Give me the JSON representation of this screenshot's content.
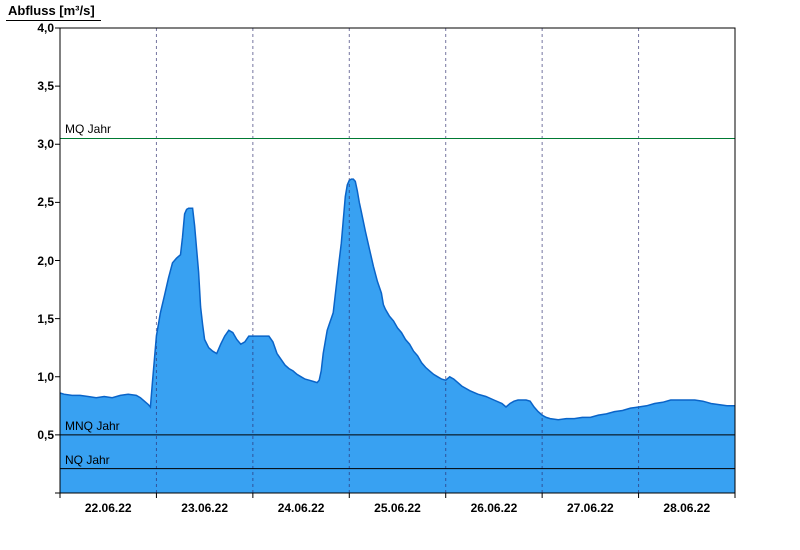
{
  "title": "Abfluss [m³/s]",
  "chart_data": {
    "type": "area",
    "title": "Abfluss [m³/s]",
    "xlabel": "",
    "ylabel": "Abfluss [m³/s]",
    "ylim": [
      0,
      4
    ],
    "ytick_step": 0.5,
    "ytick_labels": [
      "4,0",
      "3,5",
      "3,0",
      "2,5",
      "2,0",
      "1,5",
      "1,0",
      "0,5"
    ],
    "xtick_labels": [
      "22.06.22",
      "23.06.22",
      "24.06.22",
      "25.06.22",
      "26.06.22",
      "27.06.22",
      "28.06.22"
    ],
    "x_range_hours": 168,
    "x_start": "22.06.22 00:00",
    "x_end": "29.06.22 00:00",
    "grid": {
      "vertical_daily": true,
      "horizontal": false
    },
    "legend_position": "none",
    "series": [
      {
        "name": "Abfluss",
        "unit": "m³/s",
        "points": [
          [
            0,
            0.86
          ],
          [
            1,
            0.85
          ],
          [
            3,
            0.84
          ],
          [
            5,
            0.84
          ],
          [
            7,
            0.83
          ],
          [
            9,
            0.82
          ],
          [
            11,
            0.83
          ],
          [
            13,
            0.82
          ],
          [
            15,
            0.84
          ],
          [
            17,
            0.85
          ],
          [
            19,
            0.84
          ],
          [
            20,
            0.82
          ],
          [
            21,
            0.79
          ],
          [
            22,
            0.76
          ],
          [
            22.5,
            0.74
          ],
          [
            23,
            0.95
          ],
          [
            24,
            1.35
          ],
          [
            25,
            1.55
          ],
          [
            26,
            1.7
          ],
          [
            27,
            1.85
          ],
          [
            28,
            1.98
          ],
          [
            29,
            2.02
          ],
          [
            30,
            2.05
          ],
          [
            30.5,
            2.2
          ],
          [
            31,
            2.4
          ],
          [
            31.5,
            2.44
          ],
          [
            32,
            2.45
          ],
          [
            33,
            2.45
          ],
          [
            33.5,
            2.3
          ],
          [
            34,
            2.1
          ],
          [
            34.5,
            1.9
          ],
          [
            35,
            1.6
          ],
          [
            35.5,
            1.45
          ],
          [
            36,
            1.32
          ],
          [
            37,
            1.25
          ],
          [
            38,
            1.22
          ],
          [
            39,
            1.2
          ],
          [
            40,
            1.28
          ],
          [
            41,
            1.35
          ],
          [
            42,
            1.4
          ],
          [
            43,
            1.38
          ],
          [
            44,
            1.32
          ],
          [
            45,
            1.28
          ],
          [
            46,
            1.3
          ],
          [
            47,
            1.35
          ],
          [
            48,
            1.35
          ],
          [
            50,
            1.35
          ],
          [
            52,
            1.35
          ],
          [
            53,
            1.3
          ],
          [
            54,
            1.2
          ],
          [
            55,
            1.15
          ],
          [
            56,
            1.1
          ],
          [
            57,
            1.07
          ],
          [
            58,
            1.05
          ],
          [
            59,
            1.02
          ],
          [
            60,
            1.0
          ],
          [
            61,
            0.98
          ],
          [
            62,
            0.97
          ],
          [
            63,
            0.96
          ],
          [
            64,
            0.95
          ],
          [
            64.5,
            0.97
          ],
          [
            65,
            1.05
          ],
          [
            65.5,
            1.2
          ],
          [
            66,
            1.3
          ],
          [
            66.5,
            1.4
          ],
          [
            67,
            1.45
          ],
          [
            67.5,
            1.5
          ],
          [
            68,
            1.55
          ],
          [
            68.5,
            1.7
          ],
          [
            69,
            1.85
          ],
          [
            69.5,
            2.0
          ],
          [
            70,
            2.15
          ],
          [
            70.5,
            2.35
          ],
          [
            71,
            2.55
          ],
          [
            71.5,
            2.65
          ],
          [
            72,
            2.69
          ],
          [
            72.5,
            2.7
          ],
          [
            73,
            2.7
          ],
          [
            73.5,
            2.68
          ],
          [
            74,
            2.6
          ],
          [
            74.5,
            2.5
          ],
          [
            75,
            2.42
          ],
          [
            76,
            2.25
          ],
          [
            77,
            2.1
          ],
          [
            78,
            1.95
          ],
          [
            79,
            1.82
          ],
          [
            80,
            1.72
          ],
          [
            80.5,
            1.62
          ],
          [
            81,
            1.58
          ],
          [
            82,
            1.52
          ],
          [
            83,
            1.48
          ],
          [
            84,
            1.42
          ],
          [
            85,
            1.38
          ],
          [
            86,
            1.32
          ],
          [
            87,
            1.28
          ],
          [
            88,
            1.22
          ],
          [
            89,
            1.18
          ],
          [
            90,
            1.12
          ],
          [
            91,
            1.08
          ],
          [
            92,
            1.05
          ],
          [
            93,
            1.02
          ],
          [
            94,
            1.0
          ],
          [
            95,
            0.98
          ],
          [
            96,
            0.97
          ],
          [
            97,
            1.0
          ],
          [
            98,
            0.98
          ],
          [
            99,
            0.95
          ],
          [
            100,
            0.92
          ],
          [
            101,
            0.9
          ],
          [
            102,
            0.88
          ],
          [
            104,
            0.85
          ],
          [
            106,
            0.83
          ],
          [
            108,
            0.8
          ],
          [
            110,
            0.77
          ],
          [
            111,
            0.74
          ],
          [
            112,
            0.77
          ],
          [
            113,
            0.79
          ],
          [
            114,
            0.8
          ],
          [
            116,
            0.8
          ],
          [
            117,
            0.79
          ],
          [
            118,
            0.74
          ],
          [
            119,
            0.7
          ],
          [
            120,
            0.67
          ],
          [
            121,
            0.65
          ],
          [
            122,
            0.64
          ],
          [
            124,
            0.63
          ],
          [
            126,
            0.64
          ],
          [
            128,
            0.64
          ],
          [
            130,
            0.65
          ],
          [
            132,
            0.65
          ],
          [
            134,
            0.67
          ],
          [
            136,
            0.68
          ],
          [
            138,
            0.7
          ],
          [
            140,
            0.71
          ],
          [
            142,
            0.73
          ],
          [
            144,
            0.74
          ],
          [
            146,
            0.75
          ],
          [
            148,
            0.77
          ],
          [
            150,
            0.78
          ],
          [
            152,
            0.8
          ],
          [
            154,
            0.8
          ],
          [
            156,
            0.8
          ],
          [
            158,
            0.8
          ],
          [
            160,
            0.79
          ],
          [
            161,
            0.78
          ],
          [
            162,
            0.77
          ],
          [
            164,
            0.76
          ],
          [
            166,
            0.75
          ],
          [
            168,
            0.75
          ]
        ]
      }
    ],
    "ref_lines": [
      {
        "label": "MQ Jahr",
        "value": 3.05,
        "color": "#007a33"
      },
      {
        "label": "MNQ Jahr",
        "value": 0.5,
        "color": "#000000"
      },
      {
        "label": "NQ Jahr",
        "value": 0.21,
        "color": "#000000"
      }
    ],
    "colors": {
      "area_fill": "#38a1f2",
      "area_stroke": "#0a64c8",
      "grid": "#2b2b6e",
      "axis": "#000000"
    }
  }
}
